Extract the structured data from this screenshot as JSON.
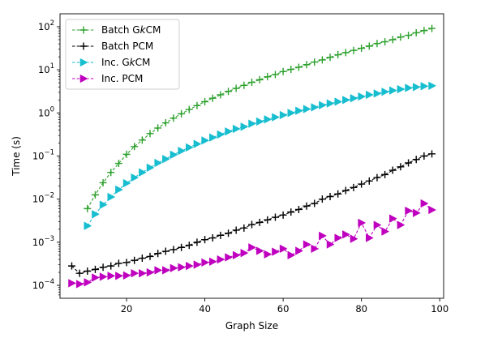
{
  "chart_data": {
    "type": "line",
    "title": "",
    "xlabel": "Graph Size",
    "ylabel": "Time (s)",
    "xlim": [
      3,
      101
    ],
    "ylim_log10": [
      -4.3,
      2.3
    ],
    "yscale": "log",
    "grid": false,
    "legend_position": "top-left",
    "x_ticks": [
      20,
      40,
      60,
      80,
      100
    ],
    "y_ticks": [
      {
        "exp": -4,
        "label_base": "10",
        "label_exp": "−4"
      },
      {
        "exp": -3,
        "label_base": "10",
        "label_exp": "−3"
      },
      {
        "exp": -2,
        "label_base": "10",
        "label_exp": "−2"
      },
      {
        "exp": -1,
        "label_base": "10",
        "label_exp": "−1"
      },
      {
        "exp": 0,
        "label_base": "10",
        "label_exp": "0"
      },
      {
        "exp": 1,
        "label_base": "10",
        "label_exp": "1"
      },
      {
        "exp": 2,
        "label_base": "10",
        "label_exp": "2"
      }
    ],
    "series": [
      {
        "name_parts": [
          "Batch G",
          "k",
          "CM"
        ],
        "color": "#2ca02c",
        "marker": "plus",
        "x": [
          10,
          12,
          14,
          16,
          18,
          20,
          22,
          24,
          26,
          28,
          30,
          32,
          34,
          36,
          38,
          40,
          42,
          44,
          46,
          48,
          50,
          52,
          54,
          56,
          58,
          60,
          62,
          64,
          66,
          68,
          70,
          72,
          74,
          76,
          78,
          80,
          82,
          84,
          86,
          88,
          90,
          92,
          94,
          96,
          98
        ],
        "log10_y": [
          -2.22,
          -1.9,
          -1.62,
          -1.38,
          -1.17,
          -0.96,
          -0.78,
          -0.63,
          -0.48,
          -0.35,
          -0.23,
          -0.12,
          -0.02,
          0.08,
          0.17,
          0.26,
          0.34,
          0.42,
          0.5,
          0.57,
          0.64,
          0.71,
          0.77,
          0.84,
          0.89,
          0.96,
          1.01,
          1.06,
          1.12,
          1.18,
          1.23,
          1.29,
          1.35,
          1.4,
          1.45,
          1.5,
          1.55,
          1.61,
          1.65,
          1.7,
          1.76,
          1.8,
          1.86,
          1.91,
          1.96
        ]
      },
      {
        "name_parts": [
          "Batch PCM"
        ],
        "color": "#000000",
        "marker": "plus",
        "x": [
          6,
          8,
          10,
          12,
          14,
          16,
          18,
          20,
          22,
          24,
          26,
          28,
          30,
          32,
          34,
          36,
          38,
          40,
          42,
          44,
          46,
          48,
          50,
          52,
          54,
          56,
          58,
          60,
          62,
          64,
          66,
          68,
          70,
          72,
          74,
          76,
          78,
          80,
          82,
          84,
          86,
          88,
          90,
          92,
          94,
          96,
          98
        ],
        "log10_y": [
          -3.55,
          -3.72,
          -3.67,
          -3.63,
          -3.58,
          -3.55,
          -3.49,
          -3.47,
          -3.42,
          -3.37,
          -3.33,
          -3.26,
          -3.21,
          -3.17,
          -3.12,
          -3.07,
          -3.0,
          -2.94,
          -2.9,
          -2.84,
          -2.79,
          -2.72,
          -2.67,
          -2.59,
          -2.54,
          -2.48,
          -2.42,
          -2.37,
          -2.3,
          -2.24,
          -2.16,
          -2.1,
          -2.0,
          -1.94,
          -1.88,
          -1.8,
          -1.73,
          -1.65,
          -1.58,
          -1.5,
          -1.43,
          -1.33,
          -1.25,
          -1.16,
          -1.08,
          -1.0,
          -0.95
        ]
      },
      {
        "name_parts": [
          "Inc. G",
          "k",
          "CM"
        ],
        "color": "#17becf",
        "marker": "triangle-right",
        "x": [
          10,
          12,
          14,
          16,
          18,
          20,
          22,
          24,
          26,
          28,
          30,
          32,
          34,
          36,
          38,
          40,
          42,
          44,
          46,
          48,
          50,
          52,
          54,
          56,
          58,
          60,
          62,
          64,
          66,
          68,
          70,
          72,
          74,
          76,
          78,
          80,
          82,
          84,
          86,
          88,
          90,
          92,
          94,
          96,
          98
        ],
        "log10_y": [
          -2.62,
          -2.35,
          -2.13,
          -1.95,
          -1.78,
          -1.63,
          -1.5,
          -1.38,
          -1.27,
          -1.16,
          -1.07,
          -0.97,
          -0.88,
          -0.8,
          -0.72,
          -0.64,
          -0.57,
          -0.5,
          -0.43,
          -0.37,
          -0.32,
          -0.25,
          -0.2,
          -0.15,
          -0.1,
          -0.05,
          0.0,
          0.05,
          0.09,
          0.13,
          0.18,
          0.22,
          0.26,
          0.3,
          0.34,
          0.38,
          0.42,
          0.45,
          0.49,
          0.52,
          0.55,
          0.58,
          0.6,
          0.62,
          0.63
        ]
      },
      {
        "name_parts": [
          "Inc. PCM"
        ],
        "color": "#bf00bf",
        "marker": "triangle-right",
        "x": [
          6,
          8,
          10,
          12,
          14,
          16,
          18,
          20,
          22,
          24,
          26,
          28,
          30,
          32,
          34,
          36,
          38,
          40,
          42,
          44,
          46,
          48,
          50,
          52,
          54,
          56,
          58,
          60,
          62,
          64,
          66,
          68,
          70,
          72,
          74,
          76,
          78,
          80,
          82,
          84,
          86,
          88,
          90,
          92,
          94,
          96,
          98
        ],
        "log10_y": [
          -3.95,
          -3.97,
          -3.93,
          -3.82,
          -3.8,
          -3.78,
          -3.78,
          -3.77,
          -3.72,
          -3.72,
          -3.7,
          -3.65,
          -3.65,
          -3.6,
          -3.58,
          -3.55,
          -3.52,
          -3.47,
          -3.45,
          -3.4,
          -3.35,
          -3.3,
          -3.25,
          -3.12,
          -3.2,
          -3.28,
          -3.22,
          -3.15,
          -3.3,
          -3.2,
          -3.05,
          -3.15,
          -2.85,
          -3.05,
          -2.9,
          -2.82,
          -2.92,
          -2.55,
          -2.9,
          -2.6,
          -2.75,
          -2.45,
          -2.6,
          -2.27,
          -2.32,
          -2.1,
          -2.25
        ]
      }
    ]
  }
}
